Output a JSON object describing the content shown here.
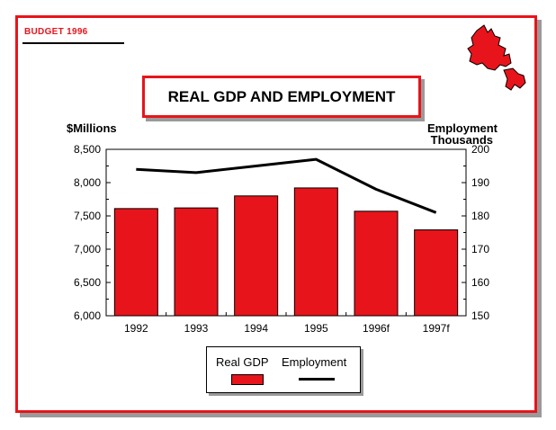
{
  "header": {
    "budget_label": "BUDGET 1996"
  },
  "icons": {
    "map": "newfoundland-map-icon"
  },
  "colors": {
    "frame": "#e8141b",
    "bar": "#e8141b",
    "line": "#000000",
    "shadow": "#9a9a9a"
  },
  "chart_data": {
    "type": "bar",
    "title": "REAL GDP AND EMPLOYMENT",
    "ylabel": "$Millions",
    "y2label": "Employment Thousands",
    "y2label_lines": [
      "Employment",
      "Thousands"
    ],
    "categories": [
      "1992",
      "1993",
      "1994",
      "1995",
      "1996f",
      "1997f"
    ],
    "ylim": [
      6000,
      8500
    ],
    "y2lim": [
      150,
      200
    ],
    "yticks": [
      "6,000",
      "6,500",
      "7,000",
      "7,500",
      "8,000",
      "8,500"
    ],
    "y2ticks": [
      "150",
      "160",
      "170",
      "180",
      "190",
      "200"
    ],
    "grid": false,
    "legend_position": "bottom",
    "series": [
      {
        "name": "Real GDP",
        "type": "bar",
        "axis": "left",
        "values": [
          7610,
          7620,
          7800,
          7920,
          7570,
          7290
        ]
      },
      {
        "name": "Employment",
        "type": "line",
        "axis": "right",
        "values": [
          194,
          193,
          195,
          197,
          188,
          181
        ]
      }
    ]
  }
}
